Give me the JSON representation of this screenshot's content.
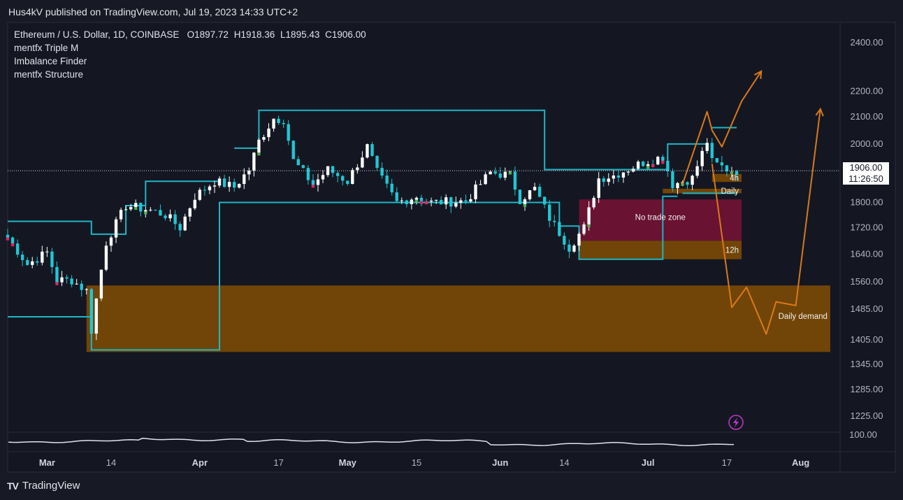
{
  "header": {
    "published": "Hus4kV published on TradingView.com, Jul 19, 2023 14:33 UTC+2"
  },
  "legend": {
    "symbol": "Ethereum / U.S. Dollar, 1D, COINBASE",
    "open_label": "O",
    "open": "1897.72",
    "high_label": "H",
    "high": "1918.36",
    "low_label": "L",
    "low": "1895.43",
    "close_label": "C",
    "close": "1906.00",
    "indicators": [
      "mentfx Triple M",
      "Imbalance Finder",
      "mentfx Structure"
    ]
  },
  "price_tag": {
    "price": "1906.00",
    "countdown": "11:26:50"
  },
  "footer": {
    "brand": "TradingView"
  },
  "colors": {
    "background": "#171a24",
    "up": "#ffffff",
    "down": "#1fc7d4",
    "structure": "#1fb6c6",
    "demand_zone": "#7a4a05",
    "no_trade_zone": "#6e1233",
    "projection": "#d9791a",
    "indicator_up": "#4caf50",
    "indicator_down": "#e91e63"
  },
  "chart_data": {
    "type": "candlestick",
    "title": "Ethereum / U.S. Dollar, 1D, COINBASE",
    "y_scale": "log",
    "y_ticks": [
      2400,
      2200,
      2100,
      2000,
      1800,
      1720,
      1640,
      1560,
      1485,
      1405,
      1345,
      1285,
      1225
    ],
    "y_tick_labels": [
      "2400.00",
      "2200.00",
      "2100.00",
      "2000.00",
      "1800.00",
      "1720.00",
      "1640.00",
      "1560.00",
      "1485.00",
      "1405.00",
      "1345.00",
      "1285.00",
      "1225.00"
    ],
    "x_range": [
      "2023-02-21",
      "2023-08-09"
    ],
    "x_ticks": [
      {
        "date": "2023-03-01",
        "label": "Mar",
        "major": true
      },
      {
        "date": "2023-03-14",
        "label": "14",
        "major": false
      },
      {
        "date": "2023-04-01",
        "label": "Apr",
        "major": true
      },
      {
        "date": "2023-04-17",
        "label": "17",
        "major": false
      },
      {
        "date": "2023-05-01",
        "label": "May",
        "major": true
      },
      {
        "date": "2023-05-15",
        "label": "15",
        "major": false
      },
      {
        "date": "2023-06-01",
        "label": "Jun",
        "major": true
      },
      {
        "date": "2023-06-14",
        "label": "14",
        "major": false
      },
      {
        "date": "2023-07-01",
        "label": "Jul",
        "major": true
      },
      {
        "date": "2023-07-17",
        "label": "17",
        "major": false
      },
      {
        "date": "2023-08-01",
        "label": "Aug",
        "major": true
      }
    ],
    "current_price": 1906.0,
    "anchors": [
      [
        "2023-02-21",
        1690
      ],
      [
        "2023-02-25",
        1610
      ],
      [
        "2023-03-01",
        1645
      ],
      [
        "2023-03-03",
        1565
      ],
      [
        "2023-03-06",
        1565
      ],
      [
        "2023-03-09",
        1535
      ],
      [
        "2023-03-10",
        1430
      ],
      [
        "2023-03-12",
        1595
      ],
      [
        "2023-03-13",
        1675
      ],
      [
        "2023-03-17",
        1790
      ],
      [
        "2023-03-22",
        1775
      ],
      [
        "2023-03-25",
        1760
      ],
      [
        "2023-03-28",
        1720
      ],
      [
        "2023-03-31",
        1820
      ],
      [
        "2023-04-04",
        1870
      ],
      [
        "2023-04-08",
        1850
      ],
      [
        "2023-04-11",
        1910
      ],
      [
        "2023-04-13",
        2010
      ],
      [
        "2023-04-16",
        2095
      ],
      [
        "2023-04-18",
        2090
      ],
      [
        "2023-04-20",
        1940
      ],
      [
        "2023-04-24",
        1860
      ],
      [
        "2023-04-27",
        1910
      ],
      [
        "2023-05-01",
        1870
      ],
      [
        "2023-05-05",
        1990
      ],
      [
        "2023-05-07",
        1900
      ],
      [
        "2023-05-11",
        1800
      ],
      [
        "2023-05-15",
        1820
      ],
      [
        "2023-05-18",
        1800
      ],
      [
        "2023-05-25",
        1805
      ],
      [
        "2023-05-30",
        1900
      ],
      [
        "2023-06-03",
        1890
      ],
      [
        "2023-06-05",
        1810
      ],
      [
        "2023-06-08",
        1845
      ],
      [
        "2023-06-11",
        1750
      ],
      [
        "2023-06-15",
        1660
      ],
      [
        "2023-06-18",
        1720
      ],
      [
        "2023-06-21",
        1880
      ],
      [
        "2023-06-24",
        1890
      ],
      [
        "2023-06-30",
        1935
      ],
      [
        "2023-07-04",
        1955
      ],
      [
        "2023-07-06",
        1860
      ],
      [
        "2023-07-10",
        1880
      ],
      [
        "2023-07-13",
        2010
      ],
      [
        "2023-07-14",
        1935
      ],
      [
        "2023-07-17",
        1912
      ],
      [
        "2023-07-19",
        1906
      ]
    ],
    "structure_line": [
      [
        "2023-02-21",
        1465
      ],
      [
        "2023-03-10",
        1465
      ],
      [
        "2023-03-10",
        1380
      ],
      [
        "2023-03-10",
        1380
      ],
      [
        "2023-04-05",
        1380
      ],
      [
        "2023-04-05",
        1800
      ],
      [
        "2023-06-13",
        1800
      ],
      [
        "2023-06-13",
        1725
      ],
      [
        "2023-06-17",
        1725
      ],
      [
        "2023-06-17",
        1625
      ],
      [
        "2023-07-04",
        1625
      ],
      [
        "2023-07-04",
        1820
      ],
      [
        "2023-07-07",
        1820
      ]
    ],
    "zones": [
      {
        "label": "Daily demand",
        "from": "2023-03-09",
        "to": "2023-08-07",
        "high": 1550,
        "low": 1375
      },
      {
        "label": "No trade zone",
        "from": "2023-06-17",
        "to": "2023-07-20",
        "high": 1810,
        "low": 1680
      },
      {
        "label": "12h",
        "from": "2023-06-17",
        "to": "2023-07-20",
        "high": 1680,
        "low": 1625
      },
      {
        "label": "Daily",
        "from": "2023-07-04",
        "to": "2023-07-20",
        "high": 1845,
        "low": 1830
      },
      {
        "label": "4h",
        "from": "2023-07-14",
        "to": "2023-07-20",
        "high": 1895,
        "low": 1868
      }
    ],
    "projections": [
      [
        [
          "2023-07-08",
          1860
        ],
        [
          "2023-07-13",
          2120
        ],
        [
          "2023-07-14",
          2050
        ],
        [
          "2023-07-16",
          1990
        ],
        [
          "2023-07-20",
          2160
        ],
        [
          "2023-07-24",
          2280
        ]
      ],
      [
        [
          "2023-07-14",
          1930
        ],
        [
          "2023-07-18",
          1490
        ],
        [
          "2023-07-21",
          1545
        ],
        [
          "2023-07-25",
          1420
        ],
        [
          "2023-07-27",
          1505
        ],
        [
          "2023-07-31",
          1495
        ],
        [
          "2023-08-05",
          2130
        ]
      ]
    ],
    "oscillator_value": "100.00"
  }
}
